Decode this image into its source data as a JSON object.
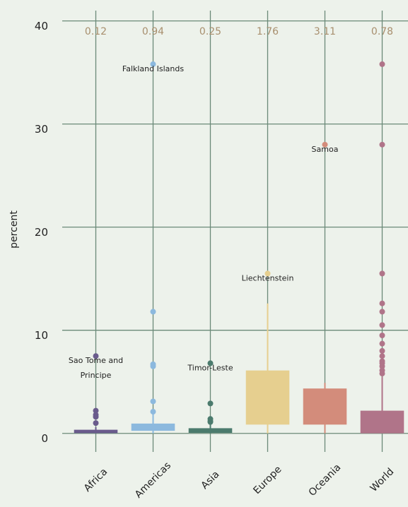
{
  "chart_data": {
    "type": "box",
    "ylabel": "percent",
    "categories": [
      "Africa",
      "Americas",
      "Asia",
      "Europe",
      "Oceania",
      "World"
    ],
    "colors": [
      "#6a5b8c",
      "#8cb9de",
      "#4b7b6d",
      "#e6cf8f",
      "#d38c7b",
      "#b07489"
    ],
    "boxes": [
      {
        "median": 0.12,
        "q1": 0.02,
        "q3": 0.35,
        "whislo": 0,
        "whishi": 0.6,
        "outliers": [
          7.5,
          2.2,
          1.8,
          1.6,
          1.0
        ]
      },
      {
        "median": 0.94,
        "q1": 0.25,
        "q3": 0.95,
        "whislo": 0,
        "whishi": 1.9,
        "outliers": [
          35.8,
          11.8,
          6.7,
          6.5,
          3.1,
          2.1
        ]
      },
      {
        "median": 0.25,
        "q1": 0.05,
        "q3": 0.5,
        "whislo": 0,
        "whishi": 1.0,
        "outliers": [
          6.8,
          2.9,
          1.4,
          1.2,
          1.1
        ]
      },
      {
        "median": 1.76,
        "q1": 0.85,
        "q3": 6.1,
        "whislo": 0,
        "whishi": 12.6,
        "outliers": [
          15.5
        ]
      },
      {
        "median": 3.11,
        "q1": 0.85,
        "q3": 4.35,
        "whislo": 0,
        "whishi": 4.9,
        "outliers": [
          28.0
        ]
      },
      {
        "median": 0.78,
        "q1": 0.0,
        "q3": 2.2,
        "whislo": 0,
        "whishi": 5.5,
        "outliers": [
          35.8,
          28.0,
          15.5,
          12.6,
          11.8,
          10.5,
          9.5,
          8.7,
          8.0,
          7.5,
          7.0,
          6.8,
          6.5,
          6.1,
          5.8
        ]
      }
    ],
    "annotations": [
      {
        "category": 0,
        "lines": [
          "Sao Tome and",
          "Principe"
        ]
      },
      {
        "category": 1,
        "lines": [
          "Falkland Islands"
        ]
      },
      {
        "category": 2,
        "lines": [
          "Timor-Leste"
        ]
      },
      {
        "category": 3,
        "lines": [
          "Liechtenstein"
        ]
      },
      {
        "category": 4,
        "lines": [
          "Samoa"
        ]
      }
    ],
    "ylim": [
      -1.8,
      41
    ],
    "yticks": [
      0,
      10,
      20,
      30,
      40
    ],
    "grid": true
  }
}
